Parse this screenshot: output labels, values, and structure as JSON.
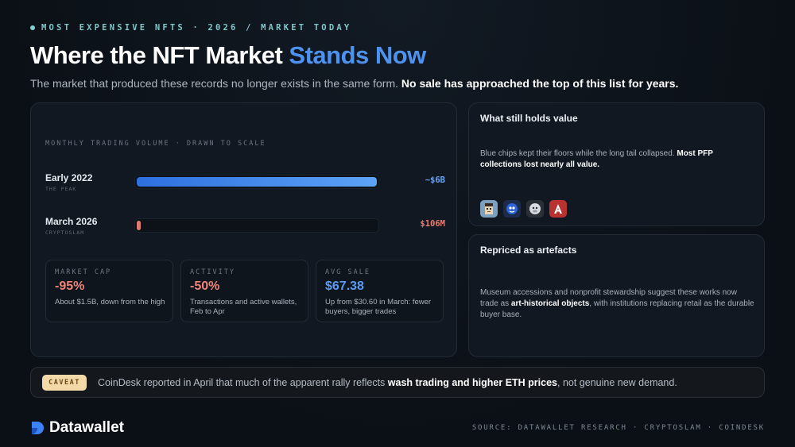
{
  "kicker": "MOST EXPENSIVE NFTS · 2026 / MARKET TODAY",
  "title": {
    "main": "Where the NFT Market ",
    "accent": "Stands Now"
  },
  "subtitle": {
    "plain": "The market that produced these records no longer exists in the same form. ",
    "bold": "No sale has approached the top of this list for years."
  },
  "volume": {
    "label": "MONTHLY TRADING VOLUME · DRAWN TO SCALE",
    "rows": [
      {
        "name": "Early 2022",
        "sub": "THE PEAK",
        "value": "~$6B",
        "fraction": 1.0
      },
      {
        "name": "March 2026",
        "sub": "CRYPTOSLAM",
        "value": "$106M",
        "fraction": 0.0177
      }
    ]
  },
  "stats": [
    {
      "label": "MARKET CAP",
      "value": "-95%",
      "desc": "About $1.5B, down from the high"
    },
    {
      "label": "ACTIVITY",
      "value": "-50%",
      "desc": "Transactions and active wallets, Feb to Apr"
    },
    {
      "label": "AVG SALE",
      "value": "$67.38",
      "desc": "Up from $30.60 in March: fewer buyers, bigger trades"
    }
  ],
  "holds_value": {
    "title": "What still holds value",
    "plain": "Blue chips kept their floors while the long tail collapsed. ",
    "bold": "Most PFP collections lost nearly all value.",
    "icons": [
      "cryptopunk-icon",
      "blue-blob-icon",
      "gray-ape-icon",
      "red-a-icon"
    ]
  },
  "artefacts": {
    "title": "Repriced as artefacts",
    "plain1": "Museum accessions and nonprofit stewardship suggest these works now trade as ",
    "bold": "art-historical objects",
    "plain2": ", with institutions replacing retail as the durable buyer base."
  },
  "caveat": {
    "badge": "CAVEAT",
    "plain1": "CoinDesk reported in April that much of the apparent rally reflects ",
    "bold": "wash trading and higher ETH prices",
    "plain2": ", not genuine new demand."
  },
  "footer": {
    "logo": "Datawallet",
    "source": "SOURCE: DATAWALLET RESEARCH · CRYPTOSLAM · COINDESK"
  },
  "colors": {
    "accent": "#4e92f0",
    "negative": "#ee8478",
    "caveat_badge": "#f3d8a8"
  }
}
